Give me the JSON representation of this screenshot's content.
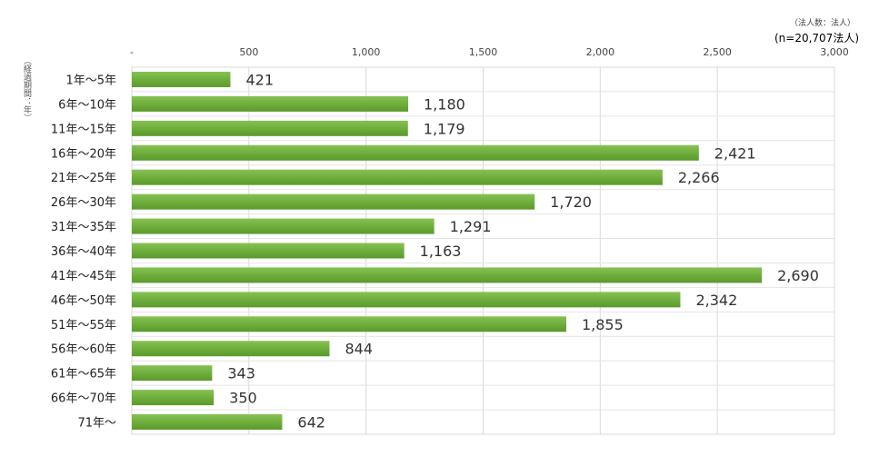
{
  "chart_data": {
    "type": "bar",
    "orientation": "horizontal",
    "unit_note": "（法人数：法人）",
    "n_note": "(n=20,707法人)",
    "ylabel": "（経過期間：年）",
    "xlim": [
      0,
      3000
    ],
    "x_ticks": [
      "-",
      "500",
      "1,000",
      "1,500",
      "2,000",
      "2,500",
      "3,000"
    ],
    "grid": true,
    "bar_color": "#6fae3c",
    "categories": [
      "1年～5年",
      "6年～10年",
      "11年～15年",
      "16年～20年",
      "21年～25年",
      "26年～30年",
      "31年～35年",
      "36年～40年",
      "41年～45年",
      "46年～50年",
      "51年～55年",
      "56年～60年",
      "61年～65年",
      "66年～70年",
      "71年～"
    ],
    "values": [
      421,
      1180,
      1179,
      2421,
      2266,
      1720,
      1291,
      1163,
      2690,
      2342,
      1855,
      844,
      343,
      350,
      642
    ],
    "value_labels": [
      "421",
      "1,180",
      "1,179",
      "2,421",
      "2,266",
      "1,720",
      "1,291",
      "1,163",
      "2,690",
      "2,342",
      "1,855",
      "844",
      "343",
      "350",
      "642"
    ]
  }
}
